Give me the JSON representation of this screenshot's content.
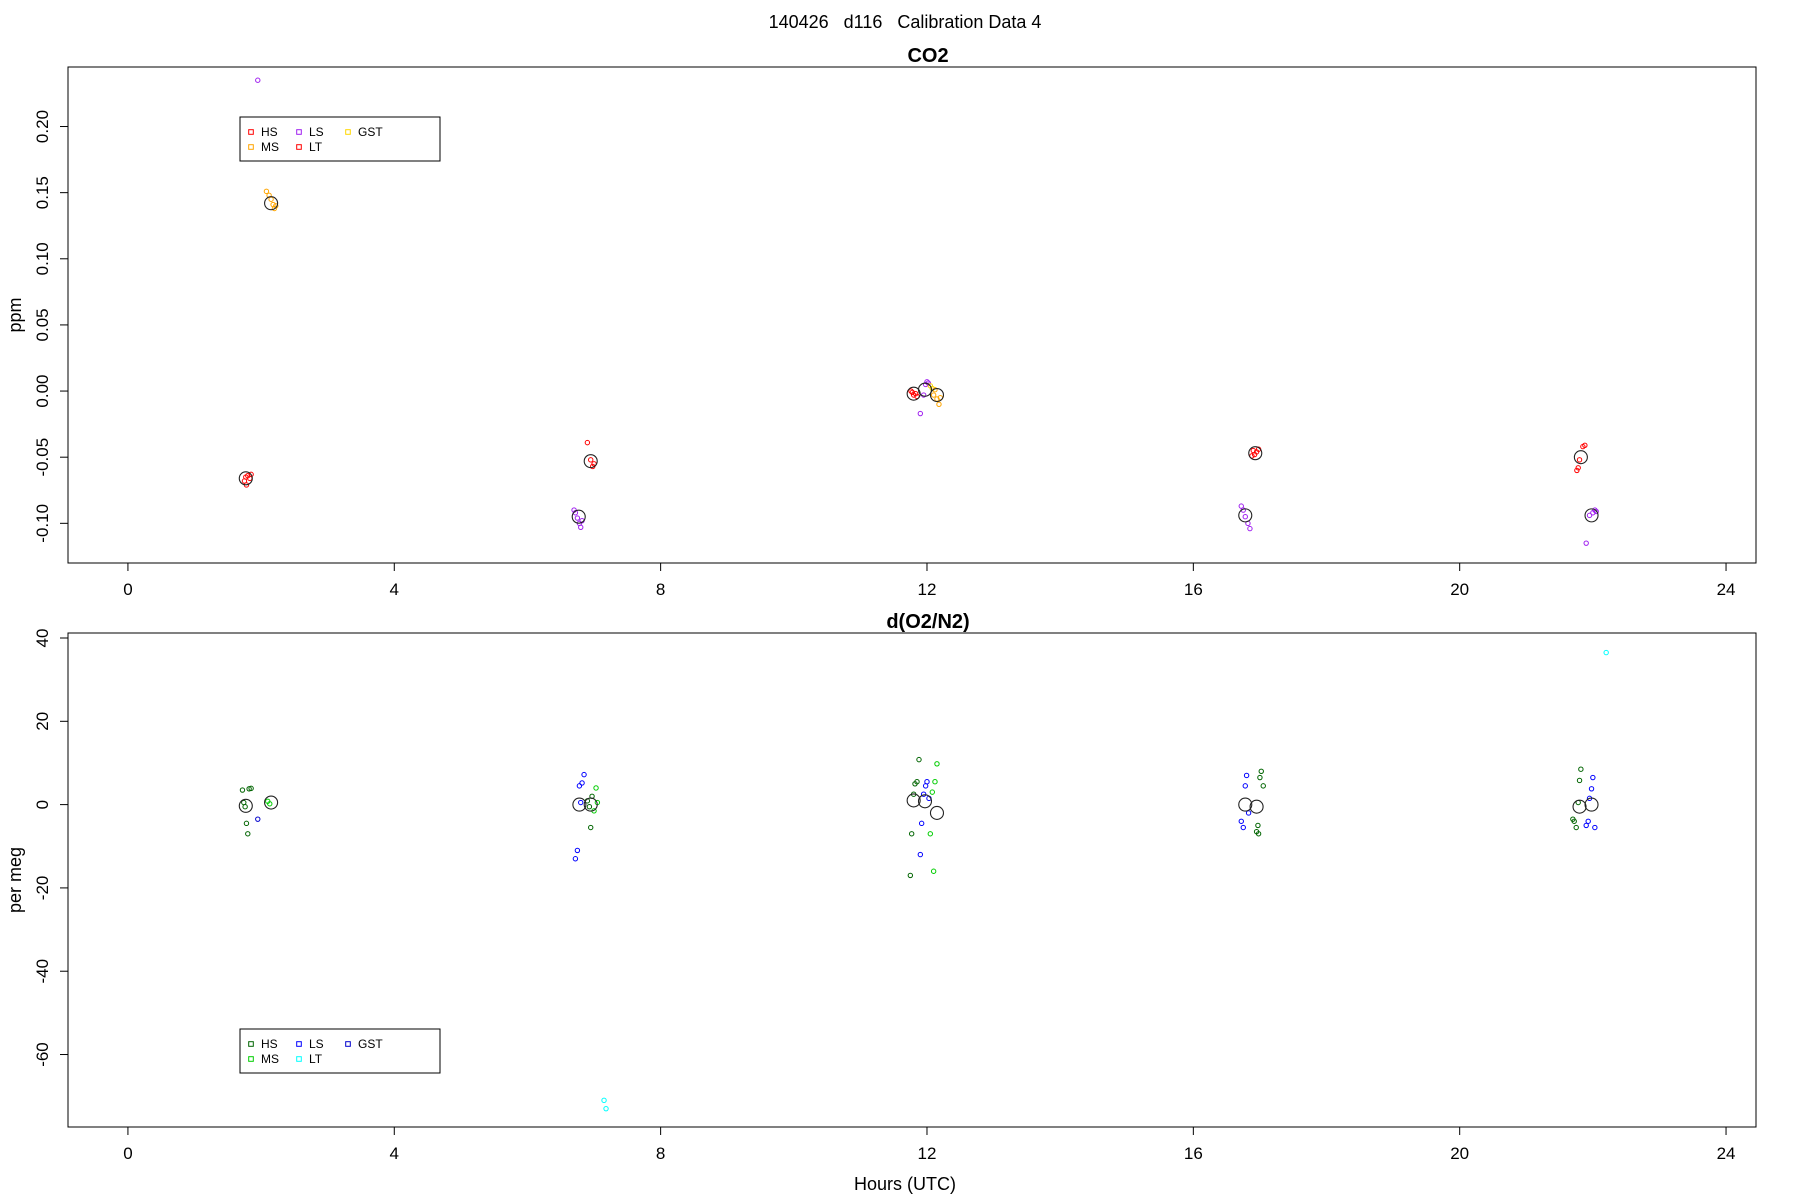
{
  "figure": {
    "supertitle": "140426   d116   Calibration Data 4",
    "xlabel": "Hours (UTC)"
  },
  "chart_data": [
    {
      "type": "scatter",
      "title": "CO2",
      "ylabel": "ppm",
      "xlabel": "",
      "xlim": [
        -0.9,
        24.45
      ],
      "ylim": [
        -0.13,
        0.245
      ],
      "xticks": [
        0,
        4,
        8,
        12,
        16,
        20,
        24
      ],
      "yticks": [
        -0.1,
        -0.05,
        0.0,
        0.05,
        0.1,
        0.15,
        0.2
      ],
      "ytick_labels": [
        "-0.10",
        "-0.05",
        "0.00",
        "0.05",
        "0.10",
        "0.15",
        "0.20"
      ],
      "grid": false,
      "legend": {
        "placement": "top-left",
        "entries": [
          {
            "label": "HS",
            "color": "#ff0000"
          },
          {
            "label": "MS",
            "color": "#ffa500"
          },
          {
            "label": "LS",
            "color": "#a020f0"
          },
          {
            "label": "LT",
            "color": "#ff0000"
          },
          {
            "label": "GST",
            "color": "#ffd700"
          }
        ]
      },
      "series": [
        {
          "name": "HS",
          "color": "#ff0000",
          "points": [
            [
              1.75,
              -0.068
            ],
            [
              1.78,
              -0.071
            ],
            [
              1.8,
              -0.064
            ],
            [
              1.83,
              -0.066
            ],
            [
              1.85,
              -0.063
            ],
            [
              1.77,
              -0.065
            ],
            [
              6.9,
              -0.039
            ],
            [
              6.95,
              -0.052
            ],
            [
              6.98,
              -0.057
            ],
            [
              7.0,
              -0.055
            ],
            [
              11.78,
              -0.001
            ],
            [
              11.8,
              -0.003
            ],
            [
              11.83,
              -0.002
            ],
            [
              11.76,
              0.0
            ],
            [
              11.85,
              -0.004
            ],
            [
              16.9,
              -0.045
            ],
            [
              16.92,
              -0.048
            ],
            [
              16.95,
              -0.046
            ],
            [
              16.98,
              -0.044
            ],
            [
              16.88,
              -0.049
            ],
            [
              21.78,
              -0.058
            ],
            [
              21.8,
              -0.052
            ],
            [
              21.85,
              -0.042
            ],
            [
              21.88,
              -0.041
            ],
            [
              21.76,
              -0.06
            ]
          ]
        },
        {
          "name": "MS",
          "color": "#ffa500",
          "points": [
            [
              2.08,
              0.151
            ],
            [
              2.12,
              0.148
            ],
            [
              2.15,
              0.145
            ],
            [
              2.18,
              0.141
            ],
            [
              2.2,
              0.138
            ],
            [
              2.22,
              0.14
            ],
            [
              12.1,
              -0.003
            ],
            [
              12.15,
              -0.006
            ],
            [
              12.18,
              -0.01
            ],
            [
              12.12,
              0.001
            ],
            [
              12.2,
              -0.005
            ]
          ]
        },
        {
          "name": "LS",
          "color": "#a020f0",
          "points": [
            [
              1.95,
              0.235
            ],
            [
              6.7,
              -0.09
            ],
            [
              6.72,
              -0.092
            ],
            [
              6.75,
              -0.096
            ],
            [
              6.78,
              -0.1
            ],
            [
              6.8,
              -0.103
            ],
            [
              6.82,
              -0.098
            ],
            [
              11.9,
              -0.017
            ],
            [
              11.95,
              -0.003
            ],
            [
              11.98,
              0.005
            ],
            [
              12.0,
              0.007
            ],
            [
              12.02,
              0.006
            ],
            [
              16.72,
              -0.087
            ],
            [
              16.75,
              -0.09
            ],
            [
              16.78,
              -0.095
            ],
            [
              16.82,
              -0.1
            ],
            [
              16.85,
              -0.104
            ],
            [
              21.9,
              -0.115
            ],
            [
              21.95,
              -0.094
            ],
            [
              22.0,
              -0.092
            ],
            [
              22.03,
              -0.09
            ],
            [
              22.05,
              -0.091
            ]
          ]
        },
        {
          "name": "LT",
          "color": "#ff0000",
          "points": []
        },
        {
          "name": "GST",
          "color": "#ffd700",
          "points": [
            [
              12.05,
              0.004
            ],
            [
              12.08,
              0.002
            ]
          ]
        }
      ],
      "means": [
        [
          1.77,
          -0.066
        ],
        [
          2.15,
          0.142
        ],
        [
          6.77,
          -0.095
        ],
        [
          6.95,
          -0.053
        ],
        [
          11.8,
          -0.002
        ],
        [
          11.97,
          0.001
        ],
        [
          12.15,
          -0.003
        ],
        [
          16.78,
          -0.094
        ],
        [
          16.93,
          -0.047
        ],
        [
          21.82,
          -0.05
        ],
        [
          21.98,
          -0.094
        ]
      ]
    },
    {
      "type": "scatter",
      "title": "d(O2/N2)",
      "ylabel": "per meg",
      "xlabel": "Hours (UTC)",
      "xlim": [
        -0.9,
        24.45
      ],
      "ylim": [
        -77.4,
        41.2
      ],
      "xticks": [
        0,
        4,
        8,
        12,
        16,
        20,
        24
      ],
      "yticks": [
        -60,
        -40,
        -20,
        0,
        20,
        40
      ],
      "ytick_labels": [
        "-60",
        "-40",
        "-20",
        "0",
        "20",
        "40"
      ],
      "grid": false,
      "legend": {
        "placement": "bottom-left",
        "entries": [
          {
            "label": "HS",
            "color": "#006400"
          },
          {
            "label": "MS",
            "color": "#00cd00"
          },
          {
            "label": "LS",
            "color": "#0000ff"
          },
          {
            "label": "LT",
            "color": "#00ffff"
          },
          {
            "label": "GST",
            "color": "#0000cd"
          }
        ]
      },
      "series": [
        {
          "name": "HS",
          "color": "#006400",
          "points": [
            [
              1.72,
              3.5
            ],
            [
              1.74,
              0.5
            ],
            [
              1.76,
              -0.5
            ],
            [
              1.78,
              -4.5
            ],
            [
              1.8,
              -7.0
            ],
            [
              1.82,
              3.8
            ],
            [
              1.85,
              3.9
            ],
            [
              6.9,
              0.9
            ],
            [
              6.93,
              -0.5
            ],
            [
              6.95,
              -5.5
            ],
            [
              6.97,
              2.0
            ],
            [
              11.75,
              -17.0
            ],
            [
              11.77,
              -7.0
            ],
            [
              11.8,
              2.5
            ],
            [
              11.82,
              5.0
            ],
            [
              11.85,
              5.5
            ],
            [
              11.88,
              10.8
            ],
            [
              21.7,
              -3.5
            ],
            [
              21.72,
              -4.0
            ],
            [
              21.75,
              -5.5
            ],
            [
              21.78,
              0.5
            ],
            [
              21.8,
              5.8
            ],
            [
              21.82,
              8.5
            ],
            [
              16.95,
              -6.5
            ],
            [
              16.97,
              -5.0
            ],
            [
              17.0,
              6.5
            ],
            [
              17.02,
              8.0
            ],
            [
              17.05,
              4.5
            ],
            [
              16.98,
              -7.0
            ]
          ]
        },
        {
          "name": "MS",
          "color": "#00cd00",
          "points": [
            [
              2.1,
              0.8
            ],
            [
              2.13,
              0.2
            ],
            [
              7.0,
              -1.5
            ],
            [
              7.03,
              4.0
            ],
            [
              7.05,
              0.5
            ],
            [
              12.05,
              -7.0
            ],
            [
              12.1,
              -16.0
            ],
            [
              12.12,
              5.5
            ],
            [
              12.15,
              9.8
            ],
            [
              12.08,
              3.0
            ]
          ]
        },
        {
          "name": "LS",
          "color": "#0000ff",
          "points": [
            [
              6.72,
              -13.0
            ],
            [
              6.75,
              -11.0
            ],
            [
              6.78,
              4.5
            ],
            [
              6.82,
              5.2
            ],
            [
              6.85,
              7.2
            ],
            [
              6.8,
              0.5
            ],
            [
              11.9,
              -12.0
            ],
            [
              11.92,
              -4.5
            ],
            [
              11.95,
              2.5
            ],
            [
              11.98,
              4.5
            ],
            [
              12.0,
              5.5
            ],
            [
              12.03,
              1.5
            ],
            [
              16.72,
              -4.0
            ],
            [
              16.75,
              -5.5
            ],
            [
              16.78,
              4.5
            ],
            [
              16.8,
              7.0
            ],
            [
              16.83,
              -2.0
            ],
            [
              21.9,
              -5.0
            ],
            [
              21.93,
              -4.0
            ],
            [
              21.95,
              1.5
            ],
            [
              21.98,
              3.8
            ],
            [
              22.0,
              6.5
            ],
            [
              22.03,
              -5.5
            ]
          ]
        },
        {
          "name": "LT",
          "color": "#00ffff",
          "points": [
            [
              7.15,
              -71.0
            ],
            [
              7.18,
              -73.0
            ],
            [
              22.2,
              36.5
            ]
          ]
        },
        {
          "name": "GST",
          "color": "#0000cd",
          "points": [
            [
              1.95,
              -3.5
            ]
          ]
        }
      ],
      "means": [
        [
          1.77,
          -0.3
        ],
        [
          2.15,
          0.5
        ],
        [
          6.78,
          0.0
        ],
        [
          6.95,
          0.0
        ],
        [
          11.8,
          1.0
        ],
        [
          11.97,
          0.8
        ],
        [
          12.15,
          -2.0
        ],
        [
          16.78,
          0.0
        ],
        [
          16.95,
          -0.5
        ],
        [
          21.8,
          -0.5
        ],
        [
          21.98,
          0.0
        ]
      ]
    }
  ]
}
